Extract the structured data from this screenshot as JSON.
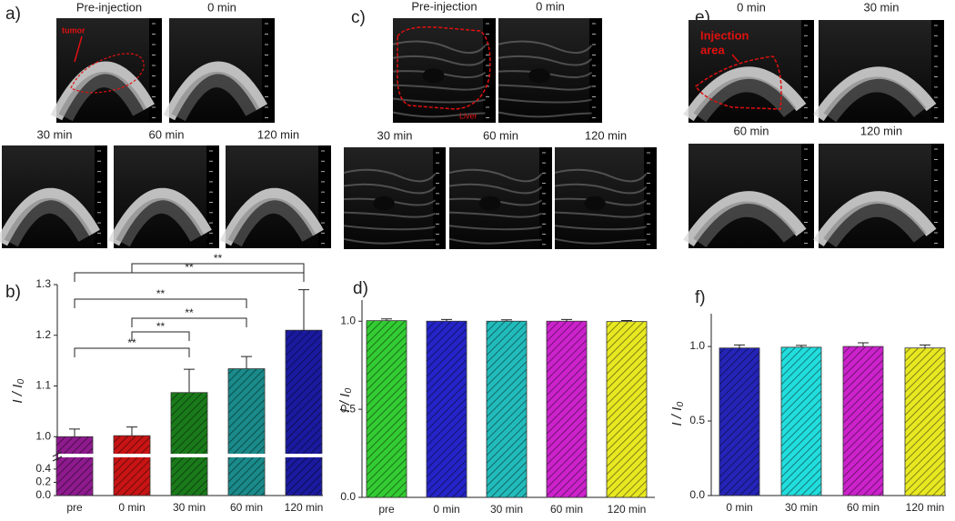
{
  "images": {
    "a": {
      "label": "a)",
      "titles": [
        "Pre-injection",
        "0 min",
        "30 min",
        "60 min",
        "120 min"
      ],
      "annotation": "tumor"
    },
    "c": {
      "label": "c)",
      "titles": [
        "Pre-injection",
        "0 min",
        "30 min",
        "60 min",
        "120 min"
      ],
      "annotation": "Liver"
    },
    "e": {
      "label": "e)",
      "titles": [
        "0 min",
        "30 min",
        "60 min",
        "120 min"
      ],
      "annotation": [
        "Injection",
        "area"
      ]
    }
  },
  "chart_data": [
    {
      "type": "bar",
      "panel_label": "b)",
      "ylabel": "I / I₀",
      "categories": [
        "pre",
        "0 min",
        "30 min",
        "60 min",
        "120 min"
      ],
      "values": [
        1.0,
        1.002,
        1.087,
        1.134,
        1.21
      ],
      "errors": [
        0.015,
        0.017,
        0.046,
        0.024,
        0.08
      ],
      "colors": [
        "#8e1a8e",
        "#c81414",
        "#1a7a1a",
        "#1a8a8a",
        "#1a1aa0"
      ],
      "ylim": [
        0,
        1.3
      ],
      "ybreak": [
        0.55,
        0.97
      ],
      "yticks": [
        {
          "value": 0,
          "label": "0.0"
        },
        {
          "value": 0.2,
          "label": "0.2"
        },
        {
          "value": 0.4,
          "label": "0.4"
        },
        {
          "value": 1,
          "label": "1.0"
        },
        {
          "value": 1.1,
          "label": "1.1"
        },
        {
          "value": 1.2,
          "label": "1.2"
        },
        {
          "value": 1.3,
          "label": "1.3"
        }
      ],
      "significance_labels": [
        "**",
        "**",
        "**",
        "**",
        "**",
        "**"
      ]
    },
    {
      "type": "bar",
      "panel_label": "d)",
      "ylabel": "I / I₀",
      "categories": [
        "pre",
        "0 min",
        "30 min",
        "60 min",
        "120 min"
      ],
      "values": [
        1.003,
        1.0,
        1.0,
        1.0,
        0.998
      ],
      "errors": [
        0.01,
        0.01,
        0.008,
        0.01,
        0.006
      ],
      "colors": [
        "#33cc33",
        "#2424c8",
        "#22bbbb",
        "#cc22cc",
        "#e8e822"
      ],
      "ylim": [
        0,
        1.12
      ],
      "yticks": [
        {
          "value": 0,
          "label": "0.0"
        },
        {
          "value": 0.5,
          "label": "0.5"
        },
        {
          "value": 1,
          "label": "1.0"
        }
      ]
    },
    {
      "type": "bar",
      "panel_label": "f)",
      "ylabel": "I / I₀",
      "categories": [
        "0 min",
        "30 min",
        "60 min",
        "120 min"
      ],
      "values": [
        0.99,
        0.995,
        1.0,
        0.99
      ],
      "errors": [
        0.02,
        0.012,
        0.025,
        0.02
      ],
      "colors": [
        "#2424b8",
        "#22dddd",
        "#cc22cc",
        "#e8e822"
      ],
      "ylim": [
        0,
        1.22
      ],
      "yticks": [
        {
          "value": 0,
          "label": "0.0"
        },
        {
          "value": 0.5,
          "label": "0.5"
        },
        {
          "value": 1,
          "label": "1.0"
        }
      ]
    }
  ]
}
